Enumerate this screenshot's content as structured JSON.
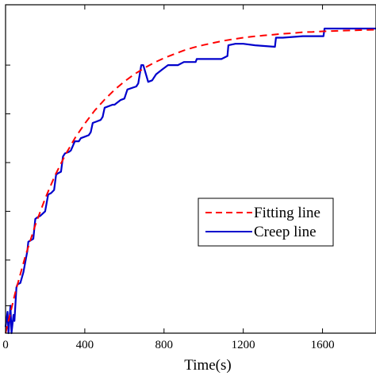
{
  "chart_data": {
    "type": "line",
    "xlabel": "Time(s)",
    "ylabel": "",
    "xlim": [
      0,
      1870
    ],
    "ylim": [
      0,
      1.0
    ],
    "x_ticks": [
      0,
      400,
      800,
      1200,
      1600
    ],
    "x_tick_labels": [
      "0",
      "400",
      "800",
      "1200",
      "1600"
    ],
    "y_ticks": [
      0.09,
      0.24,
      0.4,
      0.56,
      0.72,
      0.88
    ],
    "legend_position": "center-right",
    "series": [
      {
        "name": "Fitting line",
        "color": "#ff0000",
        "style": "dashed",
        "x": [
          0,
          50,
          100,
          150,
          200,
          250,
          300,
          350,
          400,
          450,
          500,
          550,
          600,
          650,
          700,
          750,
          800,
          850,
          900,
          950,
          1000,
          1050,
          1100,
          1150,
          1200,
          1250,
          1300,
          1350,
          1400,
          1450,
          1500,
          1550,
          1600,
          1650,
          1700,
          1750,
          1800,
          1870
        ],
        "y": [
          0.0,
          0.136,
          0.253,
          0.355,
          0.442,
          0.518,
          0.583,
          0.64,
          0.688,
          0.731,
          0.767,
          0.799,
          0.826,
          0.85,
          0.87,
          0.888,
          0.903,
          0.916,
          0.928,
          0.938,
          0.946,
          0.953,
          0.96,
          0.965,
          0.97,
          0.974,
          0.977,
          0.98,
          0.983,
          0.985,
          0.988,
          0.989,
          0.991,
          0.992,
          0.993,
          0.994,
          0.995,
          0.996
        ]
      },
      {
        "name": "Creep line",
        "color": "#0000cc",
        "style": "solid",
        "x": [
          0,
          10,
          15,
          25,
          30,
          40,
          45,
          55,
          60,
          75,
          90,
          110,
          115,
          140,
          150,
          160,
          175,
          200,
          215,
          230,
          245,
          255,
          265,
          280,
          290,
          300,
          320,
          330,
          350,
          370,
          380,
          400,
          420,
          430,
          440,
          460,
          480,
          490,
          500,
          540,
          550,
          580,
          600,
          615,
          660,
          670,
          685,
          695,
          720,
          740,
          760,
          790,
          800,
          820,
          870,
          900,
          960,
          965,
          1000,
          1090,
          1120,
          1125,
          1160,
          1200,
          1260,
          1360,
          1365,
          1400,
          1500,
          1605,
          1610,
          1700,
          1870
        ],
        "y": [
          0.02,
          0.07,
          0.0,
          0.09,
          0.0,
          0.06,
          0.04,
          0.15,
          0.16,
          0.165,
          0.2,
          0.27,
          0.3,
          0.31,
          0.375,
          0.38,
          0.385,
          0.4,
          0.455,
          0.46,
          0.47,
          0.52,
          0.525,
          0.53,
          0.58,
          0.59,
          0.595,
          0.6,
          0.63,
          0.63,
          0.64,
          0.645,
          0.65,
          0.66,
          0.69,
          0.695,
          0.7,
          0.71,
          0.74,
          0.75,
          0.75,
          0.765,
          0.77,
          0.8,
          0.81,
          0.82,
          0.88,
          0.88,
          0.825,
          0.83,
          0.85,
          0.865,
          0.87,
          0.88,
          0.88,
          0.89,
          0.89,
          0.9,
          0.9,
          0.9,
          0.91,
          0.945,
          0.95,
          0.95,
          0.945,
          0.94,
          0.97,
          0.97,
          0.975,
          0.975,
          1.0,
          1.0,
          1.0
        ]
      }
    ]
  }
}
